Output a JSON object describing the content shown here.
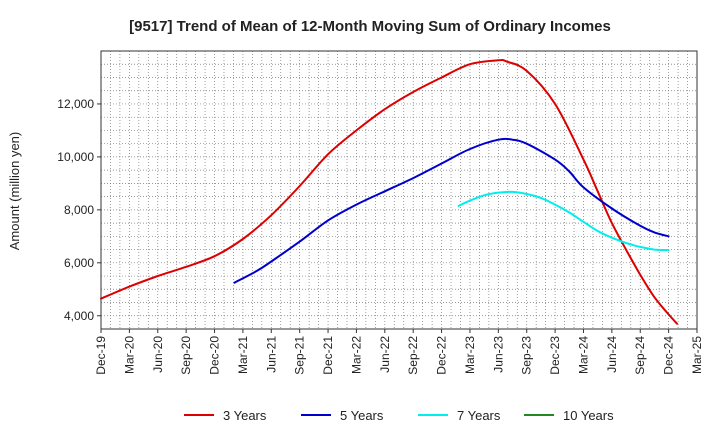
{
  "chart_data": {
    "type": "line",
    "title": "[9517]  Trend of Mean of 12-Month Moving Sum of Ordinary Incomes",
    "xlabel": "",
    "ylabel": "Amount (million yen)",
    "ylim": [
      3500,
      14000
    ],
    "yticks": [
      4000,
      6000,
      8000,
      10000,
      12000
    ],
    "ytick_labels": [
      "4,000",
      "6,000",
      "8,000",
      "10,000",
      "12,000"
    ],
    "x_categories": [
      "Dec-19",
      "Mar-20",
      "Jun-20",
      "Sep-20",
      "Dec-20",
      "Mar-21",
      "Jun-21",
      "Sep-21",
      "Dec-21",
      "Mar-22",
      "Jun-22",
      "Sep-22",
      "Dec-22",
      "Mar-23",
      "Jun-23",
      "Sep-23",
      "Dec-23",
      "Mar-24",
      "Jun-24",
      "Sep-24",
      "Dec-24",
      "Mar-25"
    ],
    "grid": true,
    "legend_position": "bottom",
    "series": [
      {
        "name": "3 Years",
        "color": "#dd0000",
        "points": [
          [
            0,
            4650
          ],
          [
            1,
            5100
          ],
          [
            2,
            5500
          ],
          [
            3,
            5850
          ],
          [
            4,
            6250
          ],
          [
            5,
            6900
          ],
          [
            6,
            7800
          ],
          [
            7,
            8900
          ],
          [
            8,
            10100
          ],
          [
            9,
            11000
          ],
          [
            10,
            11800
          ],
          [
            11,
            12450
          ],
          [
            12,
            13000
          ],
          [
            13,
            13500
          ],
          [
            14,
            13650
          ],
          [
            14.3,
            13600
          ],
          [
            15,
            13250
          ],
          [
            16,
            12000
          ],
          [
            17,
            9900
          ],
          [
            17.5,
            8700
          ],
          [
            18,
            7500
          ],
          [
            18.5,
            6500
          ],
          [
            19,
            5550
          ],
          [
            19.5,
            4700
          ],
          [
            20,
            4050
          ],
          [
            20.3,
            3700
          ]
        ]
      },
      {
        "name": "5 Years",
        "color": "#0000cc",
        "points": [
          [
            4.7,
            5250
          ],
          [
            5.5,
            5700
          ],
          [
            6,
            6050
          ],
          [
            7,
            6800
          ],
          [
            8,
            7600
          ],
          [
            9,
            8200
          ],
          [
            10,
            8700
          ],
          [
            11,
            9200
          ],
          [
            12,
            9750
          ],
          [
            13,
            10300
          ],
          [
            14,
            10650
          ],
          [
            14.5,
            10650
          ],
          [
            15,
            10500
          ],
          [
            16,
            9900
          ],
          [
            16.5,
            9450
          ],
          [
            17,
            8850
          ],
          [
            18,
            8050
          ],
          [
            19,
            7400
          ],
          [
            19.5,
            7150
          ],
          [
            20,
            7000
          ]
        ]
      },
      {
        "name": "7 Years",
        "color": "#00eeee",
        "points": [
          [
            12.6,
            8150
          ],
          [
            13,
            8350
          ],
          [
            13.5,
            8550
          ],
          [
            14,
            8650
          ],
          [
            14.5,
            8680
          ],
          [
            15,
            8600
          ],
          [
            15.5,
            8450
          ],
          [
            16,
            8200
          ],
          [
            16.5,
            7900
          ],
          [
            17,
            7550
          ],
          [
            17.5,
            7200
          ],
          [
            18,
            6950
          ],
          [
            18.5,
            6750
          ],
          [
            19,
            6600
          ],
          [
            19.5,
            6500
          ],
          [
            20,
            6480
          ]
        ]
      },
      {
        "name": "10 Years",
        "color": "#228822",
        "points": []
      }
    ]
  }
}
